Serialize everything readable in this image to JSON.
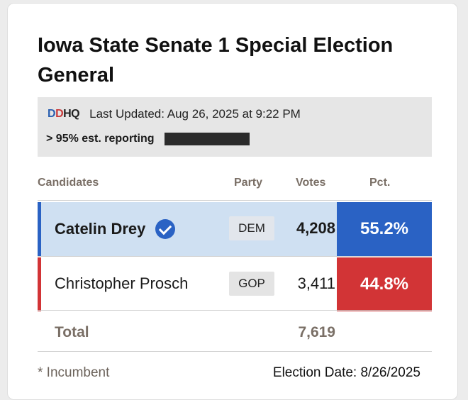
{
  "title": "Iowa State Senate 1 Special Election General",
  "status": {
    "logo_text": "DDHQ",
    "last_updated": "Last Updated: Aug 26, 2025 at 9:22 PM",
    "reporting_label": "> 95% est. reporting",
    "reporting_fraction": 0.95
  },
  "table": {
    "headers": {
      "candidates": "Candidates",
      "party": "Party",
      "votes": "Votes",
      "pct": "Pct."
    },
    "rows": [
      {
        "name": "Catelin Drey",
        "party": "DEM",
        "votes": "4,208",
        "pct": "55.2%",
        "winner": true,
        "color": "#2a62c4"
      },
      {
        "name": "Christopher Prosch",
        "party": "GOP",
        "votes": "3,411",
        "pct": "44.8%",
        "winner": false,
        "color": "#d23436"
      }
    ],
    "total_label": "Total",
    "total_votes": "7,619"
  },
  "footer": {
    "incumbent_note": "* Incumbent",
    "election_date": "Election Date: 8/26/2025"
  }
}
